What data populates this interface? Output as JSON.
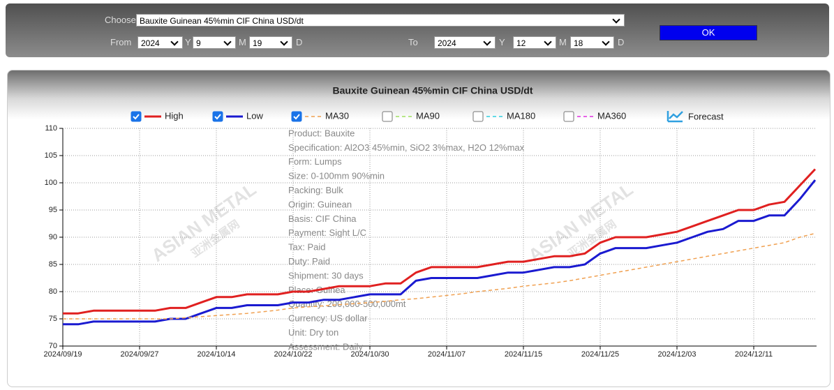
{
  "form": {
    "choose_label": "Choose",
    "product": "Bauxite Guinean 45%min CIF China USD/dt",
    "from_label": "From",
    "from_year": "2024",
    "from_month": "9",
    "from_day": "19",
    "to_label": "To",
    "to_year": "2024",
    "to_month": "12",
    "to_day": "18",
    "y_label": "Y",
    "m_label": "M",
    "d_label": "D",
    "button": "OK"
  },
  "chart_data": {
    "type": "line",
    "title": "Bauxite Guinean 45%min CIF China USD/dt",
    "categories": [
      "2024/09/19",
      null,
      null,
      null,
      null,
      "2024/09/27",
      null,
      null,
      null,
      null,
      "2024/10/14",
      null,
      null,
      null,
      null,
      "2024/10/22",
      null,
      null,
      null,
      null,
      "2024/10/30",
      null,
      null,
      null,
      null,
      "2024/11/07",
      null,
      null,
      null,
      null,
      "2024/11/15",
      null,
      null,
      null,
      null,
      "2024/11/25",
      null,
      null,
      null,
      null,
      "2024/12/03",
      null,
      null,
      null,
      null,
      "2024/12/11",
      null,
      null,
      null,
      null
    ],
    "series": [
      {
        "name": "High",
        "color": "#e02020",
        "dash": false,
        "values": [
          76,
          76,
          76.5,
          76.5,
          76.5,
          76.5,
          76.5,
          77,
          77,
          78,
          79,
          79,
          79.5,
          79.5,
          79.5,
          80,
          80,
          80.5,
          81,
          81,
          81,
          81.5,
          81.5,
          83.5,
          84.5,
          84.5,
          84.5,
          84.5,
          85,
          85.5,
          85.5,
          86,
          86.5,
          86.5,
          87,
          89,
          90,
          90,
          90,
          90.5,
          91,
          92,
          93,
          94,
          95,
          95,
          96,
          96.5,
          99.5,
          102.5
        ]
      },
      {
        "name": "Low",
        "color": "#1a1ad0",
        "dash": false,
        "values": [
          74,
          74,
          74.5,
          74.5,
          74.5,
          74.5,
          74.5,
          75,
          75,
          76,
          77,
          77,
          77.5,
          77.5,
          77.5,
          78,
          78,
          78.5,
          78.5,
          79,
          79.5,
          79.5,
          79.5,
          82,
          82.5,
          82.5,
          82.5,
          82.5,
          83,
          83.5,
          83.5,
          84,
          84.5,
          84.5,
          85,
          87,
          88,
          88,
          88,
          88.5,
          89,
          90,
          91,
          91.5,
          93,
          93,
          94,
          94,
          97,
          100.5
        ]
      },
      {
        "name": "MA30",
        "color": "#f0a050",
        "dash": true,
        "values": [
          75,
          75,
          75,
          75,
          75,
          75,
          75,
          75,
          75.2,
          75.4,
          75.6,
          75.8,
          76,
          76.3,
          76.6,
          77,
          77.2,
          77.4,
          77.6,
          77.8,
          78,
          78.2,
          78.5,
          78.7,
          79,
          79.3,
          79.6,
          80,
          80.3,
          80.6,
          81,
          81.3,
          81.6,
          82,
          82.5,
          83,
          83.5,
          84,
          84.5,
          85,
          85.5,
          86,
          86.5,
          87,
          87.5,
          88,
          88.5,
          89,
          90,
          90.7
        ]
      }
    ],
    "legend_extra": [
      {
        "name": "MA90",
        "color": "#a0e060"
      },
      {
        "name": "MA180",
        "color": "#30d0e0"
      },
      {
        "name": "MA360",
        "color": "#e030e0"
      },
      {
        "name": "Forecast",
        "color": "#30a0e0"
      }
    ],
    "ylim": [
      70,
      110
    ],
    "yticks": [
      70,
      75,
      80,
      85,
      90,
      95,
      100,
      105,
      110
    ],
    "grid": true,
    "annotation": [
      "Product: Bauxite",
      "Specification: Al2O3 45%min, SiO2 3%max, H2O 12%max",
      "Form: Lumps",
      "Size: 0-100mm 90%min",
      "Packing: Bulk",
      "Origin: Guinean",
      "Basis: CIF China",
      "Payment: Sight L/C",
      "Tax: Paid",
      "Duty: Paid",
      "Shipment: 30 days",
      "Place: Guinea",
      "Quantity: 200,000-500,000mt",
      "Currency: US dollar",
      "Unit: Dry ton",
      "Assessment: Daily"
    ],
    "watermark": [
      "ASIAN METAL",
      "亚洲金属网"
    ]
  }
}
